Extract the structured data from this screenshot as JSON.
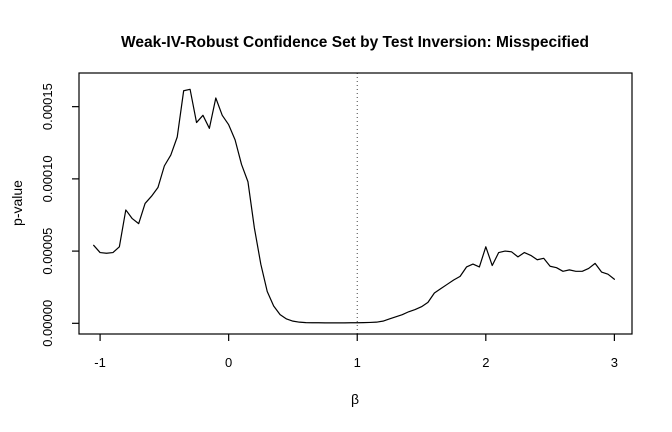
{
  "title": "Weak-IV-Robust Confidence Set by Test Inversion: Misspecified",
  "colors": {
    "background": "#ffffff",
    "curve": "#000000",
    "axis": "#000000",
    "reference_line": "#444444"
  },
  "chart_data": {
    "type": "line",
    "title": "Weak-IV-Robust Confidence Set by Test Inversion: Misspecified",
    "xlabel": "β",
    "ylabel": "p-value",
    "grid": false,
    "legend": "none",
    "box": true,
    "xlim": [
      -1.164,
      3.137
    ],
    "y_unit": 1e-05,
    "ylim_e5": [
      -0.74,
      17.33
    ],
    "x_ticks": {
      "values": [
        -1,
        0,
        1,
        2,
        3
      ],
      "labels": [
        "-1",
        "0",
        "1",
        "2",
        "3"
      ]
    },
    "y_ticks": {
      "values_e5": [
        0,
        5,
        10,
        15
      ],
      "labels": [
        "0.00000",
        "0.00005",
        "0.00010",
        "0.00015"
      ]
    },
    "vline": {
      "x": 1,
      "style": "dotted"
    },
    "series": [
      {
        "name": "p-value",
        "x": [
          -1.05,
          -1.0,
          -0.95,
          -0.9,
          -0.85,
          -0.8,
          -0.75,
          -0.7,
          -0.65,
          -0.6,
          -0.55,
          -0.5,
          -0.45,
          -0.4,
          -0.35,
          -0.3,
          -0.25,
          -0.2,
          -0.15,
          -0.1,
          -0.05,
          0.0,
          0.05,
          0.1,
          0.15,
          0.2,
          0.25,
          0.3,
          0.35,
          0.4,
          0.45,
          0.5,
          0.55,
          0.6,
          0.65,
          0.7,
          0.75,
          0.8,
          0.85,
          0.9,
          0.95,
          1.0,
          1.05,
          1.1,
          1.15,
          1.2,
          1.25,
          1.3,
          1.35,
          1.4,
          1.45,
          1.5,
          1.55,
          1.6,
          1.65,
          1.7,
          1.75,
          1.8,
          1.85,
          1.9,
          1.95,
          2.0,
          2.05,
          2.1,
          2.15,
          2.2,
          2.25,
          2.3,
          2.35,
          2.4,
          2.45,
          2.5,
          2.55,
          2.6,
          2.65,
          2.7,
          2.75,
          2.8,
          2.85,
          2.9,
          2.95,
          3.0
        ],
        "y_e5": [
          5.4,
          4.9,
          4.85,
          4.9,
          5.3,
          7.85,
          7.25,
          6.9,
          8.3,
          8.8,
          9.4,
          10.9,
          11.65,
          12.9,
          16.1,
          16.2,
          13.9,
          14.4,
          13.5,
          15.6,
          14.4,
          13.75,
          12.7,
          11.0,
          9.8,
          6.6,
          4.1,
          2.2,
          1.2,
          0.6,
          0.3,
          0.15,
          0.08,
          0.05,
          0.04,
          0.04,
          0.03,
          0.03,
          0.03,
          0.03,
          0.04,
          0.04,
          0.05,
          0.06,
          0.08,
          0.15,
          0.3,
          0.45,
          0.6,
          0.8,
          0.95,
          1.15,
          1.45,
          2.1,
          2.4,
          2.7,
          3.0,
          3.25,
          3.9,
          4.1,
          3.9,
          5.3,
          4.0,
          4.9,
          5.0,
          4.95,
          4.6,
          4.9,
          4.7,
          4.4,
          4.5,
          3.95,
          3.85,
          3.6,
          3.7,
          3.6,
          3.6,
          3.8,
          4.15,
          3.55,
          3.4,
          3.05
        ]
      }
    ]
  }
}
